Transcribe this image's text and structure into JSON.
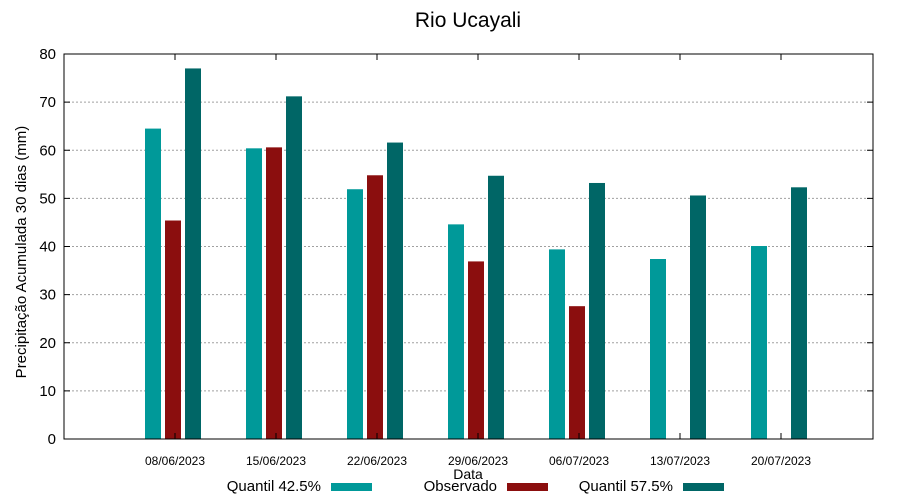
{
  "chart_data": {
    "type": "bar",
    "title": "Rio Ucayali",
    "xlabel": "Data",
    "ylabel": "Precipitação Acumulada 30 dias (mm)",
    "ylim": [
      0,
      80
    ],
    "yticks": [
      0,
      10,
      20,
      30,
      40,
      50,
      60,
      70,
      80
    ],
    "grid": true,
    "legend_position": "bottom",
    "categories": [
      "08/06/2023",
      "15/06/2023",
      "22/06/2023",
      "29/06/2023",
      "06/07/2023",
      "13/07/2023",
      "20/07/2023"
    ],
    "series": [
      {
        "name": "Quantil 42.5%",
        "color": "#009999",
        "values": [
          64.5,
          60.4,
          51.9,
          44.6,
          39.4,
          37.4,
          40.1
        ]
      },
      {
        "name": "Observado",
        "color": "#8b0e0e",
        "values": [
          45.4,
          60.6,
          54.8,
          36.9,
          27.6,
          null,
          null
        ]
      },
      {
        "name": "Quantil 57.5%",
        "color": "#006666",
        "values": [
          77.0,
          71.2,
          61.6,
          54.7,
          53.2,
          50.6,
          52.3
        ]
      }
    ]
  }
}
